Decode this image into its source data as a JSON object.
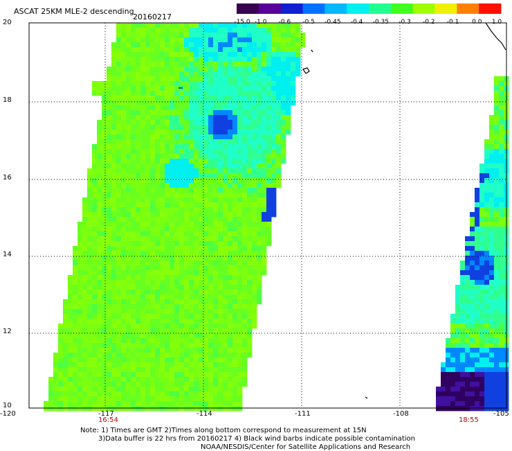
{
  "title": "ASCAT 25KM MLE-2 descending",
  "date": "20160217",
  "colorbar": {
    "labels": [
      "-15.0",
      "-1.0",
      "-0.6",
      "-0.5",
      "-0.45",
      "-0.4",
      "-0.35",
      "-0.3",
      "-0.2",
      "-0.1",
      "0.0",
      "1.0"
    ],
    "colors": [
      "#3a0050",
      "#5a009a",
      "#1020d0",
      "#0070ff",
      "#00b8ff",
      "#00f0f0",
      "#20ff90",
      "#40ff20",
      "#a0ff00",
      "#f0f000",
      "#ff8000",
      "#ff1000"
    ]
  },
  "lat_labels": [
    "20",
    "18",
    "16",
    "14",
    "12",
    "10"
  ],
  "lon_labels": [
    "-120",
    "-117",
    "-114",
    "-111",
    "-108",
    "-105"
  ],
  "time_labels": {
    "left": "16:54",
    "right": "18:55"
  },
  "notes": {
    "line1": "Note: 1) Times are GMT 2)Times along bottom correspond to measurement at 15N",
    "line2": "3)Data buffer is 22 hrs from 20160217 4) Black wind barbs indicate possible contamination",
    "line3": "NOAA/NESDIS/Center for Satellite Applications and Research"
  }
}
